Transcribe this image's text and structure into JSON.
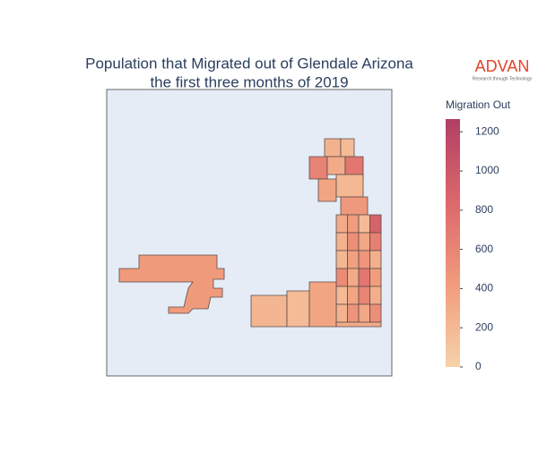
{
  "chart_data": {
    "type": "choropleth",
    "title_lines": [
      "Population that Migrated out of Glendale Arizona",
      "the first three months of 2019"
    ],
    "logo": {
      "name": "ADVAN",
      "tagline": "Research through Technology"
    },
    "colorbar_title": "Migration Out",
    "zlim": [
      0,
      1265
    ],
    "zticks": [
      0,
      200,
      400,
      600,
      800,
      1000,
      1200
    ],
    "colorscale": [
      [
        0,
        "#f6d2a9"
      ],
      [
        0.33,
        "#f19c7c"
      ],
      [
        0.66,
        "#dd686c"
      ],
      [
        1,
        "#b13f64"
      ]
    ],
    "values": [
      430,
      250,
      180,
      620,
      300,
      720,
      350,
      200,
      450,
      300,
      420,
      180,
      900,
      250,
      520,
      330,
      640,
      210,
      380,
      470,
      260,
      560,
      300,
      720,
      410,
      190,
      350,
      600,
      280,
      240,
      480,
      330,
      520,
      220,
      180,
      350,
      300
    ]
  }
}
